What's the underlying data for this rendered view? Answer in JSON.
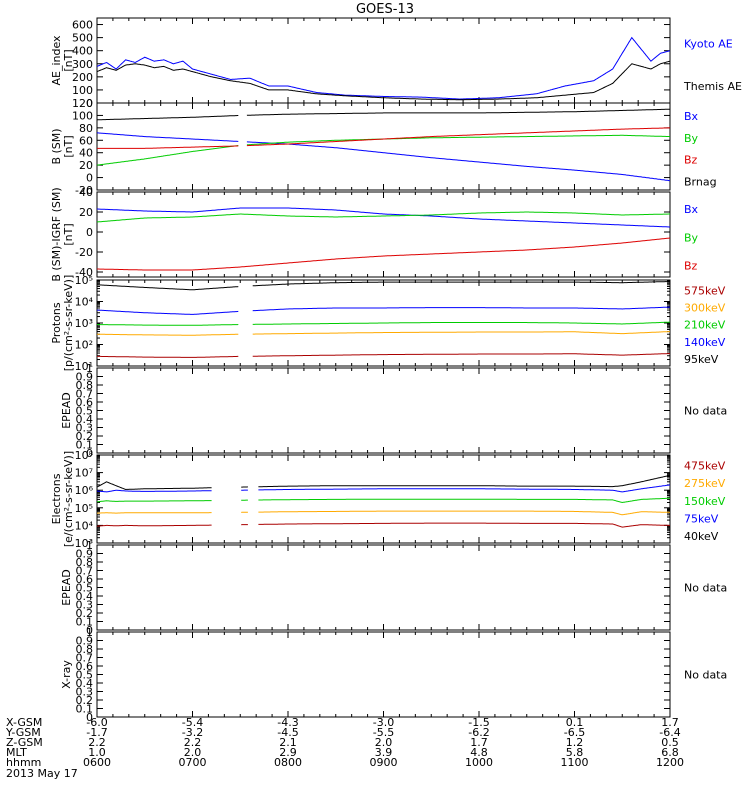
{
  "title": "GOES-13",
  "date_label": "2013 May 17",
  "colors": {
    "black": "#000000",
    "blue": "#0000ff",
    "green": "#00cc00",
    "red": "#dd0000",
    "orange": "#ffaa00",
    "darkred": "#aa0000"
  },
  "ephemeris": {
    "rows": [
      {
        "label": "X-GSM",
        "values": [
          "-6.0",
          "-5.4",
          "-4.3",
          "-3.0",
          "-1.5",
          "0.1",
          "1.7"
        ]
      },
      {
        "label": "Y-GSM",
        "values": [
          "-1.7",
          "-3.2",
          "-4.5",
          "-5.5",
          "-6.2",
          "-6.5",
          "-6.4"
        ]
      },
      {
        "label": "Z-GSM",
        "values": [
          "2.2",
          "2.2",
          "2.1",
          "2.0",
          "1.7",
          "1.2",
          "0.5"
        ]
      },
      {
        "label": "MLT",
        "values": [
          "1.0",
          "2.0",
          "2.9",
          "3.9",
          "4.8",
          "5.8",
          "6.8"
        ]
      },
      {
        "label": "hhmm",
        "values": [
          "0600",
          "0700",
          "0800",
          "0900",
          "1000",
          "1100",
          "1200"
        ]
      }
    ]
  },
  "chart_data": [
    {
      "type": "line",
      "ylabel": "AE_index\n[nT]",
      "ylim": [
        0,
        650
      ],
      "log": false,
      "yticks": [
        0,
        100,
        200,
        300,
        400,
        500,
        600
      ],
      "x": [
        6.0,
        6.1,
        6.2,
        6.3,
        6.4,
        6.5,
        6.6,
        6.7,
        6.8,
        6.9,
        7.0,
        7.2,
        7.4,
        7.6,
        7.8,
        8.0,
        8.3,
        8.6,
        9.0,
        9.4,
        9.8,
        10.2,
        10.6,
        10.9,
        11.2,
        11.4,
        11.6,
        11.8,
        11.9,
        12.0
      ],
      "series": [
        {
          "name": "Kyoto AE",
          "color": "blue",
          "values": [
            280,
            310,
            260,
            330,
            310,
            350,
            320,
            330,
            300,
            320,
            260,
            220,
            180,
            190,
            130,
            130,
            80,
            60,
            50,
            45,
            30,
            40,
            70,
            130,
            170,
            260,
            500,
            320,
            380,
            400
          ]
        },
        {
          "name": "Themis AE",
          "color": "black",
          "values": [
            240,
            270,
            250,
            290,
            300,
            290,
            270,
            280,
            250,
            260,
            240,
            200,
            170,
            150,
            100,
            100,
            70,
            55,
            40,
            30,
            25,
            30,
            40,
            60,
            80,
            150,
            300,
            260,
            300,
            320
          ]
        }
      ]
    },
    {
      "type": "line",
      "ylabel": "B (SM)\n[nT]",
      "ylim": [
        -20,
        120
      ],
      "log": false,
      "yticks": [
        -20,
        0,
        20,
        40,
        60,
        80,
        100,
        120
      ],
      "gaps": [
        [
          7.48,
          7.56
        ]
      ],
      "x": [
        6.0,
        6.5,
        7.0,
        7.5,
        8.0,
        8.5,
        9.0,
        9.5,
        10.0,
        10.5,
        11.0,
        11.5,
        12.0
      ],
      "series": [
        {
          "name": "Bx",
          "color": "blue",
          "values": [
            72,
            66,
            62,
            58,
            54,
            48,
            40,
            32,
            25,
            18,
            12,
            5,
            -5
          ]
        },
        {
          "name": "By",
          "color": "green",
          "values": [
            20,
            30,
            42,
            52,
            57,
            60,
            62,
            64,
            65,
            66,
            67,
            68,
            66
          ]
        },
        {
          "name": "Bz",
          "color": "red",
          "values": [
            47,
            47,
            49,
            51,
            54,
            58,
            62,
            66,
            69,
            72,
            75,
            78,
            80
          ]
        },
        {
          "name": "Brnag",
          "color": "black",
          "values": [
            93,
            95,
            97,
            100,
            102,
            103,
            104,
            104,
            104,
            105,
            106,
            108,
            110
          ]
        }
      ]
    },
    {
      "type": "line",
      "ylabel": "B (SM)-IGRF (SM)\n[nT]",
      "ylim": [
        -45,
        40
      ],
      "log": false,
      "yticks": [
        -40,
        -20,
        0,
        20,
        40
      ],
      "x": [
        6.0,
        6.5,
        7.0,
        7.5,
        8.0,
        8.5,
        9.0,
        9.5,
        10.0,
        10.5,
        11.0,
        11.5,
        12.0
      ],
      "series": [
        {
          "name": "Bx",
          "color": "blue",
          "values": [
            23,
            21,
            20,
            24,
            24,
            22,
            18,
            16,
            13,
            11,
            9,
            7,
            5
          ]
        },
        {
          "name": "By",
          "color": "green",
          "values": [
            10,
            14,
            15,
            18,
            16,
            15,
            16,
            17,
            19,
            20,
            19,
            17,
            18
          ]
        },
        {
          "name": "Bz",
          "color": "red",
          "values": [
            -37,
            -38,
            -38,
            -35,
            -31,
            -27,
            -24,
            -22,
            -20,
            -18,
            -15,
            -11,
            -6
          ]
        }
      ]
    },
    {
      "type": "line",
      "ylabel": "Protons\n[p/(cm²-s-sr-keV)]",
      "ylim": [
        10,
        100000
      ],
      "log": true,
      "yticks": [
        10,
        100,
        1000,
        10000,
        100000
      ],
      "ytick_labels": [
        "10¹",
        "10²",
        "10³",
        "10⁴",
        "10⁵"
      ],
      "gaps": [
        [
          7.48,
          7.62
        ]
      ],
      "x": [
        6.0,
        6.5,
        7.0,
        7.5,
        8.0,
        8.5,
        9.0,
        9.5,
        10.0,
        10.5,
        11.0,
        11.5,
        12.0
      ],
      "series": [
        {
          "name": "575keV",
          "color": "darkred",
          "values": [
            28,
            26,
            25,
            28,
            30,
            32,
            34,
            35,
            36,
            36,
            37,
            32,
            38
          ]
        },
        {
          "name": "300keV",
          "color": "orange",
          "values": [
            300,
            280,
            270,
            300,
            320,
            340,
            360,
            370,
            380,
            380,
            390,
            320,
            400
          ]
        },
        {
          "name": "210keV",
          "color": "green",
          "values": [
            850,
            800,
            780,
            850,
            900,
            950,
            1000,
            1050,
            1050,
            1050,
            1000,
            900,
            1100
          ]
        },
        {
          "name": "140keV",
          "color": "blue",
          "values": [
            4000,
            3000,
            2500,
            3500,
            4500,
            5000,
            5000,
            5200,
            5200,
            5000,
            5000,
            4500,
            5500
          ]
        },
        {
          "name": "95keV",
          "color": "black",
          "values": [
            60000,
            45000,
            35000,
            50000,
            65000,
            75000,
            80000,
            80000,
            80000,
            80000,
            80000,
            75000,
            85000
          ]
        }
      ]
    },
    {
      "type": "line",
      "ylabel": "EPEAD",
      "ylim": [
        0,
        1
      ],
      "log": false,
      "yticks": [
        0,
        0.1,
        0.2,
        0.3,
        0.4,
        0.5,
        0.6,
        0.7,
        0.8,
        0.9,
        1.0
      ],
      "nodata": "No data",
      "series": []
    },
    {
      "type": "line",
      "ylabel": "Electrons\n[e/(cm²-s-sr-keV)]",
      "ylim": [
        1000,
        100000000
      ],
      "log": true,
      "yticks": [
        1000,
        10000,
        100000,
        1000000,
        10000000,
        100000000
      ],
      "ytick_labels": [
        "10³",
        "10⁴",
        "10⁵",
        "10⁶",
        "10⁷",
        "10⁸"
      ],
      "gaps": [
        [
          7.2,
          7.5
        ],
        [
          7.58,
          7.68
        ]
      ],
      "x": [
        6.0,
        6.1,
        6.2,
        6.3,
        6.5,
        7.0,
        7.5,
        8.0,
        8.5,
        9.0,
        9.5,
        10.0,
        10.5,
        11.0,
        11.4,
        11.5,
        11.7,
        12.0
      ],
      "series": [
        {
          "name": "475keV",
          "color": "darkred",
          "values": [
            9000,
            10000,
            9500,
            10000,
            9500,
            10000,
            11000,
            12000,
            12500,
            13000,
            13500,
            13500,
            13000,
            13000,
            12000,
            8000,
            11000,
            10000
          ]
        },
        {
          "name": "275keV",
          "color": "orange",
          "values": [
            50000,
            52000,
            50000,
            52000,
            52000,
            52000,
            55000,
            60000,
            62000,
            65000,
            65000,
            65000,
            65000,
            62000,
            55000,
            40000,
            60000,
            55000
          ]
        },
        {
          "name": "150keV",
          "color": "green",
          "values": [
            220000,
            250000,
            230000,
            240000,
            240000,
            250000,
            270000,
            290000,
            300000,
            310000,
            310000,
            310000,
            300000,
            300000,
            280000,
            200000,
            300000,
            350000
          ]
        },
        {
          "name": "75keV",
          "color": "blue",
          "values": [
            900000,
            800000,
            1000000,
            900000,
            850000,
            900000,
            1000000,
            1100000,
            1150000,
            1200000,
            1200000,
            1200000,
            1150000,
            1100000,
            1000000,
            800000,
            1200000,
            2000000
          ]
        },
        {
          "name": "40keV",
          "color": "black",
          "values": [
            1500000,
            3000000,
            1800000,
            1100000,
            1200000,
            1300000,
            1500000,
            1700000,
            1800000,
            1800000,
            1800000,
            1800000,
            1700000,
            1700000,
            1600000,
            1800000,
            3000000,
            7000000
          ]
        }
      ]
    },
    {
      "type": "line",
      "ylabel": "EPEAD",
      "ylim": [
        0,
        1
      ],
      "log": false,
      "yticks": [
        0,
        0.1,
        0.2,
        0.3,
        0.4,
        0.5,
        0.6,
        0.7,
        0.8,
        0.9,
        1.0
      ],
      "nodata": "No data",
      "series": []
    },
    {
      "type": "line",
      "ylabel": "X-ray",
      "ylim": [
        0,
        1
      ],
      "log": false,
      "yticks": [
        0,
        0.1,
        0.2,
        0.3,
        0.4,
        0.5,
        0.6,
        0.7,
        0.8,
        0.9,
        1.0
      ],
      "nodata": "No data",
      "series": []
    }
  ]
}
